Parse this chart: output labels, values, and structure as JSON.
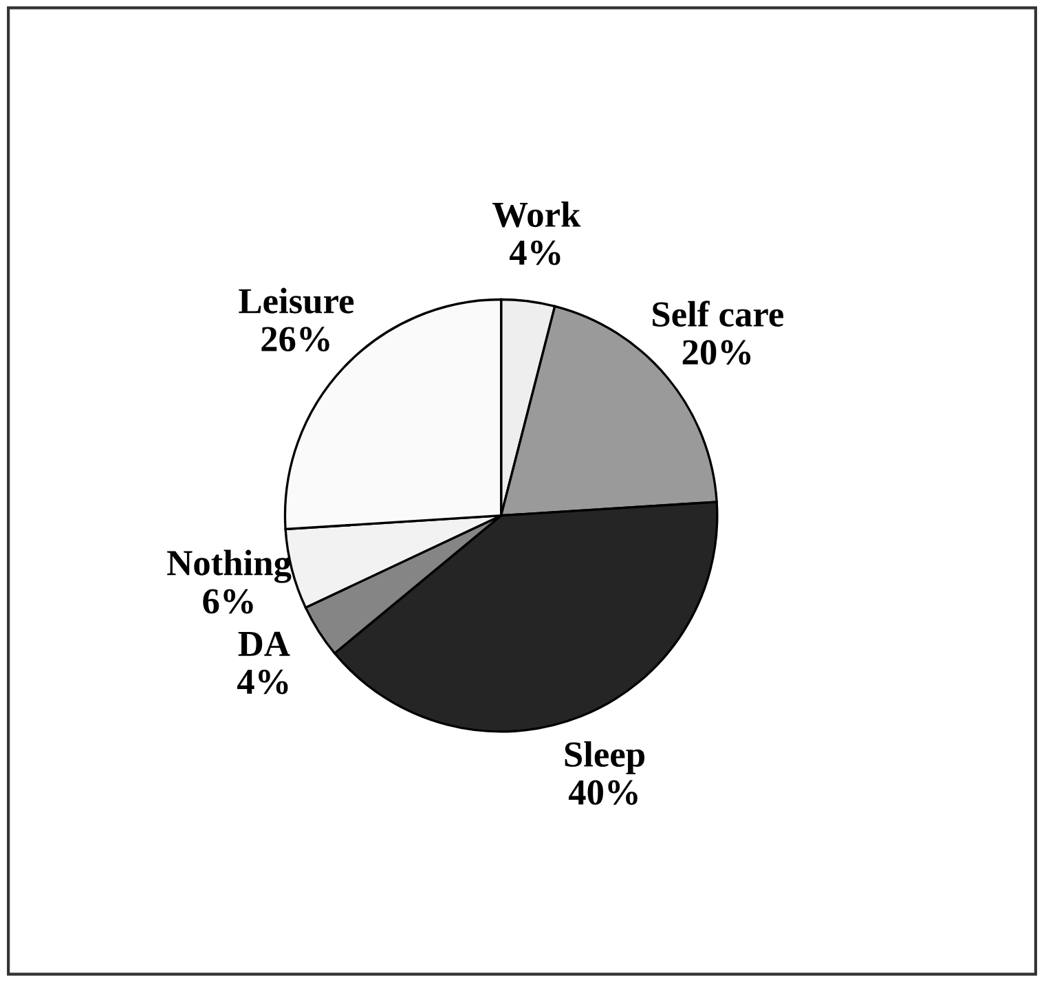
{
  "chart_data": {
    "type": "pie",
    "categories": [
      "Work",
      "Self care",
      "Sleep",
      "DA",
      "Nothing",
      "Leisure"
    ],
    "values": [
      4,
      20,
      40,
      4,
      6,
      26
    ],
    "colors": [
      "#eeeeee",
      "#9a9a9a",
      "#252525",
      "#858585",
      "#f2f2f2",
      "#fafafa"
    ],
    "value_labels": [
      "4%",
      "20%",
      "40%",
      "4%",
      "6%",
      "26%"
    ]
  }
}
